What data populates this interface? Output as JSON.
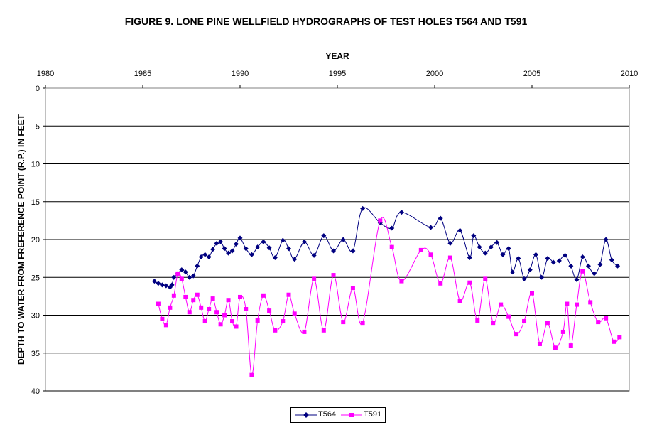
{
  "chart_data": {
    "type": "line",
    "title": "FIGURE 9. LONE PINE WELLFIELD HYDROGRAPHS OF TEST HOLES T564 AND T591",
    "xlabel": "YEAR",
    "ylabel": "DEPTH TO WATER FROM FREFERENCE POINT (R.P.) IN FEET",
    "xlim": [
      1980,
      2010
    ],
    "ylim": [
      0,
      40
    ],
    "y_inverted": true,
    "x_ticks": [
      "1980",
      "1985",
      "1990",
      "1995",
      "2000",
      "2005",
      "2010"
    ],
    "y_ticks": [
      "0",
      "5",
      "10",
      "15",
      "20",
      "25",
      "30",
      "35",
      "40"
    ],
    "grid": "horizontal",
    "legend_position": "bottom-center",
    "series": [
      {
        "name": "T564",
        "color": "#000080",
        "marker": "diamond",
        "x": [
          1985.6,
          1985.8,
          1986.0,
          1986.2,
          1986.4,
          1986.5,
          1986.6,
          1986.8,
          1987.0,
          1987.2,
          1987.4,
          1987.6,
          1987.8,
          1988.0,
          1988.2,
          1988.4,
          1988.6,
          1988.8,
          1989.0,
          1989.2,
          1989.4,
          1989.6,
          1989.8,
          1990.0,
          1990.3,
          1990.6,
          1990.9,
          1991.2,
          1991.5,
          1991.8,
          1992.2,
          1992.5,
          1992.8,
          1993.3,
          1993.8,
          1994.3,
          1994.8,
          1995.3,
          1995.8,
          1996.3,
          1997.2,
          1997.8,
          1998.3,
          1999.8,
          2000.3,
          2000.8,
          2001.3,
          2001.8,
          2002.0,
          2002.3,
          2002.6,
          2002.9,
          2003.2,
          2003.5,
          2003.8,
          2004.0,
          2004.3,
          2004.6,
          2004.9,
          2005.2,
          2005.5,
          2005.8,
          2006.1,
          2006.4,
          2006.7,
          2007.0,
          2007.3,
          2007.6,
          2007.9,
          2008.2,
          2008.5,
          2008.8,
          2009.1,
          2009.4
        ],
        "y": [
          25.5,
          25.8,
          26.0,
          26.1,
          26.3,
          26.0,
          25.0,
          24.5,
          24.0,
          24.3,
          25.0,
          24.8,
          23.5,
          22.3,
          22.0,
          22.3,
          21.3,
          20.5,
          20.3,
          21.2,
          21.8,
          21.5,
          20.6,
          19.8,
          21.2,
          22.0,
          21.0,
          20.3,
          21.1,
          22.4,
          20.1,
          21.2,
          22.6,
          20.3,
          22.1,
          19.5,
          21.5,
          20.0,
          21.5,
          15.9,
          17.8,
          18.5,
          16.4,
          18.4,
          17.2,
          20.5,
          18.8,
          22.4,
          19.5,
          21.0,
          21.8,
          21.0,
          20.4,
          22.0,
          21.2,
          24.3,
          22.5,
          25.2,
          24.0,
          22.0,
          25.0,
          22.5,
          23.0,
          22.8,
          22.1,
          23.5,
          25.3,
          22.3,
          23.5,
          24.5,
          23.3,
          20.0,
          22.7,
          23.5
        ],
        "marker_step": 1
      },
      {
        "name": "T591",
        "color": "#ff00ff",
        "marker": "square",
        "x": [
          1985.8,
          1986.0,
          1986.2,
          1986.4,
          1986.6,
          1986.8,
          1987.0,
          1987.2,
          1987.4,
          1987.6,
          1987.8,
          1988.0,
          1988.2,
          1988.4,
          1988.6,
          1988.8,
          1989.0,
          1989.2,
          1989.4,
          1989.6,
          1989.8,
          1990.0,
          1990.3,
          1990.6,
          1990.9,
          1991.2,
          1991.5,
          1991.8,
          1992.2,
          1992.5,
          1992.8,
          1993.3,
          1993.8,
          1994.3,
          1994.8,
          1995.3,
          1995.8,
          1996.3,
          1997.2,
          1997.8,
          1998.3,
          1999.3,
          1999.8,
          2000.3,
          2000.8,
          2001.3,
          2001.8,
          2002.2,
          2002.6,
          2003.0,
          2003.4,
          2003.8,
          2004.2,
          2004.6,
          2005.0,
          2005.4,
          2005.8,
          2006.2,
          2006.6,
          2006.8,
          2007.0,
          2007.3,
          2007.6,
          2008.0,
          2008.4,
          2008.8,
          2009.2,
          2009.5
        ],
        "y": [
          28.5,
          30.5,
          31.3,
          29.0,
          27.4,
          24.5,
          25.2,
          27.6,
          29.6,
          28.0,
          27.3,
          29.0,
          30.8,
          29.2,
          27.8,
          29.6,
          31.2,
          30.0,
          28.0,
          30.8,
          31.5,
          27.6,
          29.2,
          37.9,
          30.7,
          27.4,
          29.4,
          32.0,
          30.8,
          27.3,
          29.8,
          32.2,
          25.2,
          32.0,
          24.7,
          30.9,
          26.4,
          31.0,
          17.5,
          21.0,
          25.5,
          21.4,
          22.0,
          25.8,
          22.4,
          28.1,
          25.7,
          30.7,
          25.2,
          31.0,
          28.6,
          30.2,
          32.5,
          30.8,
          27.1,
          33.8,
          31.0,
          34.3,
          32.2,
          28.5,
          34.0,
          28.6,
          24.2,
          28.3,
          30.9,
          30.4,
          33.5,
          32.9
        ],
        "marker_step": 1
      }
    ]
  }
}
